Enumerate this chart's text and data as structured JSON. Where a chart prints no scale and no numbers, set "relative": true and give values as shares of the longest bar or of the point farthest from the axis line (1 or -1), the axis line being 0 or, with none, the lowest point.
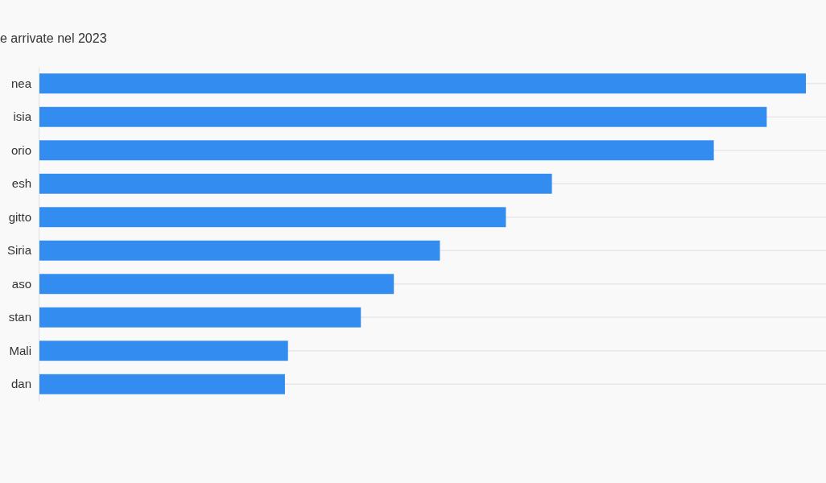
{
  "chart_data": {
    "type": "bar",
    "orientation": "horizontal",
    "relative": true,
    "title": "e arrivate nel 2023",
    "categories": [
      "nea",
      "isia",
      "orio",
      "esh",
      "gitto",
      "Siria",
      "aso",
      "stan",
      "Mali",
      "dan"
    ],
    "values": [
      1,
      0.949,
      0.88,
      0.669,
      0.609,
      0.523,
      0.463,
      0.42,
      0.325,
      0.321
    ],
    "color": "#338cf0",
    "grid": "y"
  }
}
